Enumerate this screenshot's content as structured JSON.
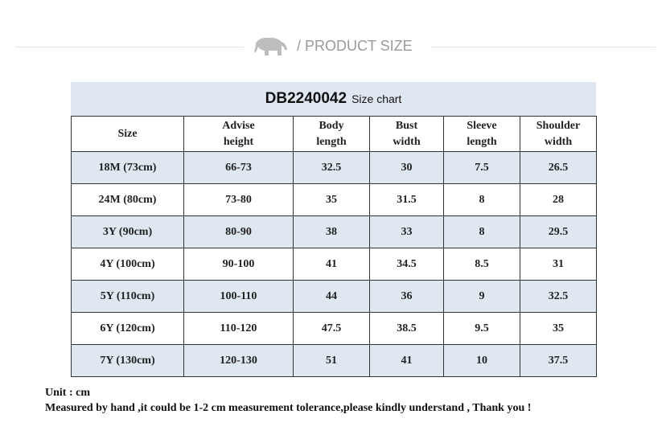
{
  "header": {
    "title": "/ PRODUCT SIZE"
  },
  "table": {
    "code": "DB2240042",
    "title": "Size chart",
    "columns": [
      [
        "Size"
      ],
      [
        "Advise",
        "height"
      ],
      [
        "Body",
        "length"
      ],
      [
        "Bust",
        "width"
      ],
      [
        "Sleeve",
        "length"
      ],
      [
        "Shoulder",
        "width"
      ]
    ],
    "rows": [
      [
        "18M (73cm)",
        "66-73",
        "32.5",
        "30",
        "7.5",
        "26.5"
      ],
      [
        "24M (80cm)",
        "73-80",
        "35",
        "31.5",
        "8",
        "28"
      ],
      [
        "3Y (90cm)",
        "80-90",
        "38",
        "33",
        "8",
        "29.5"
      ],
      [
        "4Y (100cm)",
        "90-100",
        "41",
        "34.5",
        "8.5",
        "31"
      ],
      [
        "5Y (110cm)",
        "100-110",
        "44",
        "36",
        "9",
        "32.5"
      ],
      [
        "6Y (120cm)",
        "110-120",
        "47.5",
        "38.5",
        "9.5",
        "35"
      ],
      [
        "7Y (130cm)",
        "120-130",
        "51",
        "41",
        "10",
        "37.5"
      ]
    ]
  },
  "footer": {
    "unit": "Unit : cm",
    "note": "Measured by hand ,it could be 1-2 cm measurement tolerance,please kindly understand , Thank you !"
  }
}
